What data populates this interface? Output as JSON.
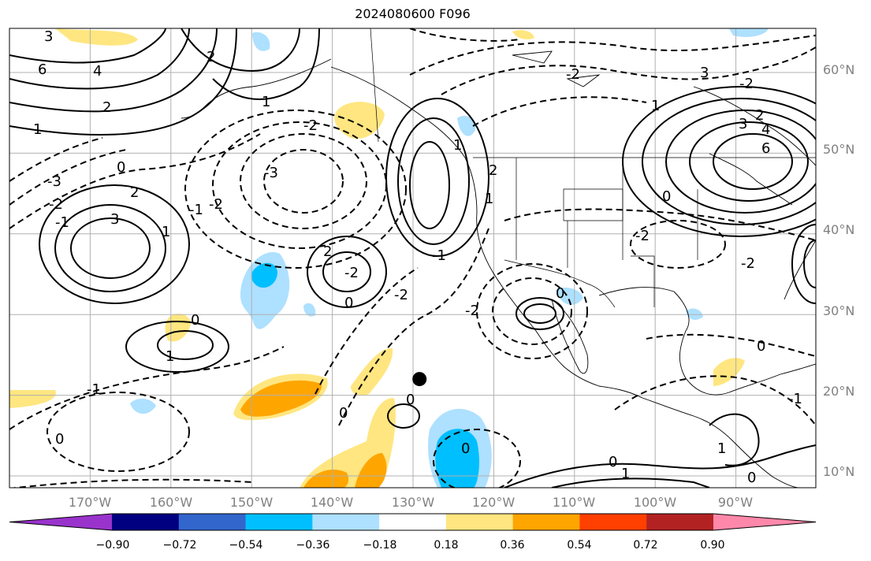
{
  "title": "2024080600 F096",
  "map": {
    "lon_labels": [
      "170°W",
      "160°W",
      "150°W",
      "140°W",
      "130°W",
      "120°W",
      "110°W",
      "100°W",
      "90°W"
    ],
    "lat_labels": [
      "60°N",
      "50°N",
      "40°N",
      "30°N",
      "20°N",
      "10°N"
    ],
    "label_color": "#808080",
    "marker": {
      "lon": -129.2,
      "lat": 22.0,
      "color": "#000000"
    }
  },
  "contour_labels": [
    "3",
    "6",
    "4",
    "2",
    "1",
    "0",
    "-1",
    "-2",
    "-3"
  ],
  "colorbar": {
    "colors": [
      "#9933cc",
      "#000080",
      "#3366cc",
      "#00bfff",
      "#aee0ff",
      "#ffffff",
      "#ffe680",
      "#ffa500",
      "#ff4000",
      "#b22222",
      "#ff88aa"
    ],
    "ticks": [
      "−0.90",
      "−0.72",
      "−0.54",
      "−0.36",
      "−0.18",
      "0.18",
      "0.36",
      "0.54",
      "0.72",
      "0.90"
    ]
  }
}
